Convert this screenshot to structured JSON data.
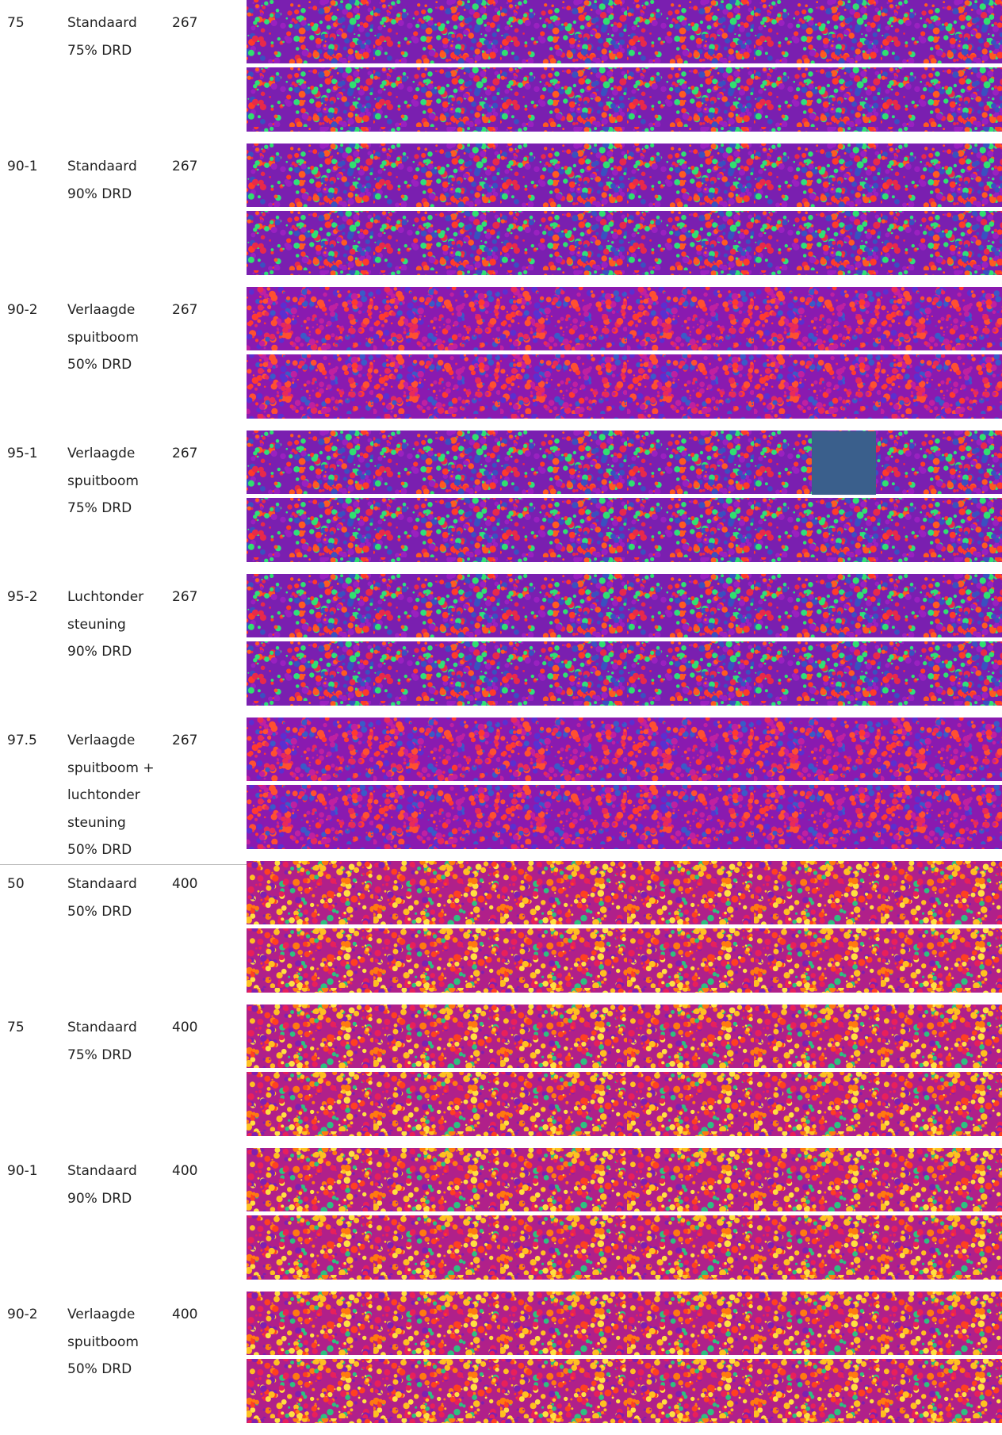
{
  "rows": [
    {
      "code": "75",
      "description": [
        "Standaard",
        "75% DRD"
      ],
      "number": "267"
    },
    {
      "code": "90-1",
      "description": [
        "Standaard",
        "90% DRD"
      ],
      "number": "267"
    },
    {
      "code": "90-2",
      "description": [
        "Verlaagde",
        "spuitboom",
        "50% DRD"
      ],
      "number": "267"
    },
    {
      "code": "95-1",
      "description": [
        "Verlaagde",
        "spuitboom",
        "75% DRD"
      ],
      "number": "267"
    },
    {
      "code": "95-2",
      "description": [
        "Luchtonder",
        "steuning",
        "90% DRD"
      ],
      "number": "267"
    },
    {
      "code": "97.5",
      "description": [
        "Verlaagde",
        "spuitboom +",
        "luchtonder",
        "steuning",
        "50% DRD"
      ],
      "number": "267"
    },
    {
      "code": "50",
      "description": [
        "Standaard",
        "50% DRD"
      ],
      "number": "400"
    },
    {
      "code": "75",
      "description": [
        "Standaard",
        "75% DRD"
      ],
      "number": "400"
    },
    {
      "code": "90-1",
      "description": [
        "Standaard",
        "90% DRD"
      ],
      "number": "400"
    },
    {
      "code": "90-2",
      "description": [
        "Verlaagde",
        "spuitboom",
        "50% DRD"
      ],
      "number": "400"
    }
  ]
}
